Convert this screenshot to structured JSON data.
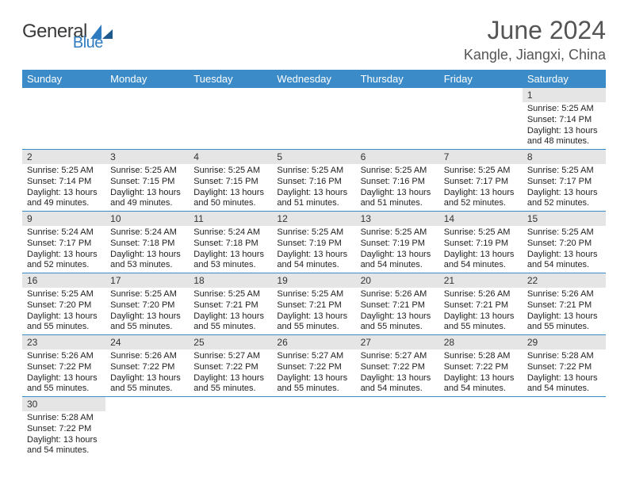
{
  "brand": {
    "part1": "General",
    "part2": "Blue"
  },
  "title": "June 2024",
  "location": "Kangle, Jiangxi, China",
  "colors": {
    "accent": "#3b8bc8",
    "day_strip": "#e5e5e5",
    "text": "#222222",
    "muted": "#555555"
  },
  "days_of_week": [
    "Sunday",
    "Monday",
    "Tuesday",
    "Wednesday",
    "Thursday",
    "Friday",
    "Saturday"
  ],
  "weeks": [
    [
      null,
      null,
      null,
      null,
      null,
      null,
      {
        "n": "1",
        "sr": "Sunrise: 5:25 AM",
        "ss": "Sunset: 7:14 PM",
        "d1": "Daylight: 13 hours",
        "d2": "and 48 minutes."
      }
    ],
    [
      {
        "n": "2",
        "sr": "Sunrise: 5:25 AM",
        "ss": "Sunset: 7:14 PM",
        "d1": "Daylight: 13 hours",
        "d2": "and 49 minutes."
      },
      {
        "n": "3",
        "sr": "Sunrise: 5:25 AM",
        "ss": "Sunset: 7:15 PM",
        "d1": "Daylight: 13 hours",
        "d2": "and 49 minutes."
      },
      {
        "n": "4",
        "sr": "Sunrise: 5:25 AM",
        "ss": "Sunset: 7:15 PM",
        "d1": "Daylight: 13 hours",
        "d2": "and 50 minutes."
      },
      {
        "n": "5",
        "sr": "Sunrise: 5:25 AM",
        "ss": "Sunset: 7:16 PM",
        "d1": "Daylight: 13 hours",
        "d2": "and 51 minutes."
      },
      {
        "n": "6",
        "sr": "Sunrise: 5:25 AM",
        "ss": "Sunset: 7:16 PM",
        "d1": "Daylight: 13 hours",
        "d2": "and 51 minutes."
      },
      {
        "n": "7",
        "sr": "Sunrise: 5:25 AM",
        "ss": "Sunset: 7:17 PM",
        "d1": "Daylight: 13 hours",
        "d2": "and 52 minutes."
      },
      {
        "n": "8",
        "sr": "Sunrise: 5:25 AM",
        "ss": "Sunset: 7:17 PM",
        "d1": "Daylight: 13 hours",
        "d2": "and 52 minutes."
      }
    ],
    [
      {
        "n": "9",
        "sr": "Sunrise: 5:24 AM",
        "ss": "Sunset: 7:17 PM",
        "d1": "Daylight: 13 hours",
        "d2": "and 52 minutes."
      },
      {
        "n": "10",
        "sr": "Sunrise: 5:24 AM",
        "ss": "Sunset: 7:18 PM",
        "d1": "Daylight: 13 hours",
        "d2": "and 53 minutes."
      },
      {
        "n": "11",
        "sr": "Sunrise: 5:24 AM",
        "ss": "Sunset: 7:18 PM",
        "d1": "Daylight: 13 hours",
        "d2": "and 53 minutes."
      },
      {
        "n": "12",
        "sr": "Sunrise: 5:25 AM",
        "ss": "Sunset: 7:19 PM",
        "d1": "Daylight: 13 hours",
        "d2": "and 54 minutes."
      },
      {
        "n": "13",
        "sr": "Sunrise: 5:25 AM",
        "ss": "Sunset: 7:19 PM",
        "d1": "Daylight: 13 hours",
        "d2": "and 54 minutes."
      },
      {
        "n": "14",
        "sr": "Sunrise: 5:25 AM",
        "ss": "Sunset: 7:19 PM",
        "d1": "Daylight: 13 hours",
        "d2": "and 54 minutes."
      },
      {
        "n": "15",
        "sr": "Sunrise: 5:25 AM",
        "ss": "Sunset: 7:20 PM",
        "d1": "Daylight: 13 hours",
        "d2": "and 54 minutes."
      }
    ],
    [
      {
        "n": "16",
        "sr": "Sunrise: 5:25 AM",
        "ss": "Sunset: 7:20 PM",
        "d1": "Daylight: 13 hours",
        "d2": "and 55 minutes."
      },
      {
        "n": "17",
        "sr": "Sunrise: 5:25 AM",
        "ss": "Sunset: 7:20 PM",
        "d1": "Daylight: 13 hours",
        "d2": "and 55 minutes."
      },
      {
        "n": "18",
        "sr": "Sunrise: 5:25 AM",
        "ss": "Sunset: 7:21 PM",
        "d1": "Daylight: 13 hours",
        "d2": "and 55 minutes."
      },
      {
        "n": "19",
        "sr": "Sunrise: 5:25 AM",
        "ss": "Sunset: 7:21 PM",
        "d1": "Daylight: 13 hours",
        "d2": "and 55 minutes."
      },
      {
        "n": "20",
        "sr": "Sunrise: 5:26 AM",
        "ss": "Sunset: 7:21 PM",
        "d1": "Daylight: 13 hours",
        "d2": "and 55 minutes."
      },
      {
        "n": "21",
        "sr": "Sunrise: 5:26 AM",
        "ss": "Sunset: 7:21 PM",
        "d1": "Daylight: 13 hours",
        "d2": "and 55 minutes."
      },
      {
        "n": "22",
        "sr": "Sunrise: 5:26 AM",
        "ss": "Sunset: 7:21 PM",
        "d1": "Daylight: 13 hours",
        "d2": "and 55 minutes."
      }
    ],
    [
      {
        "n": "23",
        "sr": "Sunrise: 5:26 AM",
        "ss": "Sunset: 7:22 PM",
        "d1": "Daylight: 13 hours",
        "d2": "and 55 minutes."
      },
      {
        "n": "24",
        "sr": "Sunrise: 5:26 AM",
        "ss": "Sunset: 7:22 PM",
        "d1": "Daylight: 13 hours",
        "d2": "and 55 minutes."
      },
      {
        "n": "25",
        "sr": "Sunrise: 5:27 AM",
        "ss": "Sunset: 7:22 PM",
        "d1": "Daylight: 13 hours",
        "d2": "and 55 minutes."
      },
      {
        "n": "26",
        "sr": "Sunrise: 5:27 AM",
        "ss": "Sunset: 7:22 PM",
        "d1": "Daylight: 13 hours",
        "d2": "and 55 minutes."
      },
      {
        "n": "27",
        "sr": "Sunrise: 5:27 AM",
        "ss": "Sunset: 7:22 PM",
        "d1": "Daylight: 13 hours",
        "d2": "and 54 minutes."
      },
      {
        "n": "28",
        "sr": "Sunrise: 5:28 AM",
        "ss": "Sunset: 7:22 PM",
        "d1": "Daylight: 13 hours",
        "d2": "and 54 minutes."
      },
      {
        "n": "29",
        "sr": "Sunrise: 5:28 AM",
        "ss": "Sunset: 7:22 PM",
        "d1": "Daylight: 13 hours",
        "d2": "and 54 minutes."
      }
    ],
    [
      {
        "n": "30",
        "sr": "Sunrise: 5:28 AM",
        "ss": "Sunset: 7:22 PM",
        "d1": "Daylight: 13 hours",
        "d2": "and 54 minutes."
      },
      null,
      null,
      null,
      null,
      null,
      null
    ]
  ]
}
